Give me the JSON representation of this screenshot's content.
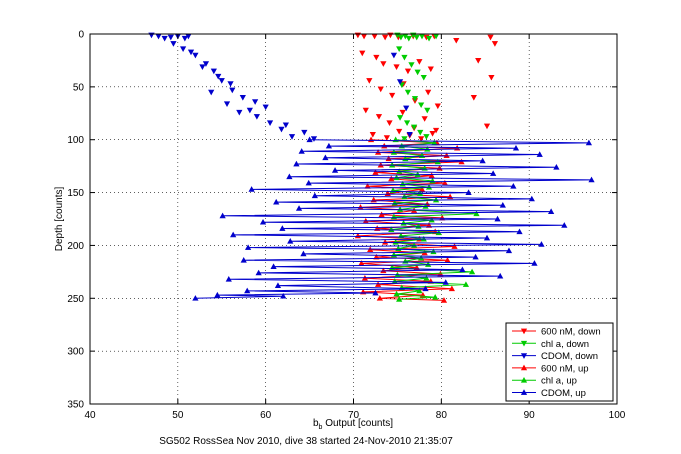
{
  "figure": {
    "caption": "SG502 RossSea Nov 2010, dive 38 started 24-Nov-2010 21:35:07"
  },
  "chart_data": {
    "type": "scatter",
    "xlabel_main": "b",
    "xlabel_sub": "b",
    "xlabel_rest": " Output [counts]",
    "ylabel": "Depth [counts]",
    "xlim": [
      40,
      100
    ],
    "ylim": [
      0,
      350
    ],
    "y_reversed": true,
    "grid": true,
    "grid_style": "dotted",
    "legend_placement": "bottom-right",
    "x_ticks": [
      "40",
      "50",
      "60",
      "70",
      "80",
      "90",
      "100"
    ],
    "y_ticks": [
      "0",
      "50",
      "100",
      "150",
      "200",
      "250",
      "300",
      "350"
    ],
    "series": [
      {
        "name": "600 nM, down",
        "color": "#ff0000",
        "marker": "triangle-down",
        "connected": false,
        "points": [
          [
            70.5,
            1
          ],
          [
            71.2,
            2
          ],
          [
            72.4,
            2
          ],
          [
            73.6,
            3
          ],
          [
            74.2,
            1
          ],
          [
            75.1,
            3
          ],
          [
            76.8,
            2
          ],
          [
            78.3,
            3
          ],
          [
            79.2,
            2
          ],
          [
            81.7,
            6
          ],
          [
            85.6,
            3
          ],
          [
            86.1,
            9
          ],
          [
            84.2,
            25
          ],
          [
            85.7,
            41
          ],
          [
            83.7,
            60
          ],
          [
            85.2,
            87
          ],
          [
            71.0,
            18
          ],
          [
            72.6,
            22
          ],
          [
            73.4,
            28
          ],
          [
            74.9,
            31
          ],
          [
            76.2,
            35
          ],
          [
            77.5,
            26
          ],
          [
            78.8,
            33
          ],
          [
            71.8,
            44
          ],
          [
            73.1,
            52
          ],
          [
            74.4,
            58
          ],
          [
            75.7,
            47
          ],
          [
            77.0,
            63
          ],
          [
            78.5,
            55
          ],
          [
            79.6,
            68
          ],
          [
            71.4,
            72
          ],
          [
            72.9,
            78
          ],
          [
            74.1,
            84
          ],
          [
            75.6,
            74
          ],
          [
            76.9,
            89
          ],
          [
            78.1,
            80
          ],
          [
            79.4,
            91
          ],
          [
            72.2,
            95
          ],
          [
            73.8,
            98
          ],
          [
            75.2,
            92
          ],
          [
            76.4,
            96
          ],
          [
            77.7,
            99
          ],
          [
            79.0,
            94
          ]
        ]
      },
      {
        "name": "chl a, down",
        "color": "#00cc00",
        "marker": "triangle-down",
        "connected": false,
        "points": [
          [
            75.0,
            1
          ],
          [
            75.4,
            3
          ],
          [
            75.9,
            2
          ],
          [
            76.3,
            4
          ],
          [
            76.8,
            1
          ],
          [
            77.2,
            3
          ],
          [
            77.8,
            2
          ],
          [
            78.6,
            4
          ],
          [
            79.4,
            2
          ],
          [
            75.2,
            14
          ],
          [
            75.8,
            22
          ],
          [
            76.6,
            29
          ],
          [
            77.3,
            36
          ],
          [
            78.0,
            41
          ],
          [
            75.5,
            48
          ],
          [
            76.2,
            55
          ],
          [
            77.0,
            61
          ],
          [
            77.7,
            67
          ],
          [
            78.4,
            72
          ],
          [
            75.3,
            79
          ],
          [
            76.1,
            84
          ],
          [
            76.9,
            88
          ],
          [
            77.6,
            93
          ],
          [
            78.3,
            97
          ],
          [
            75.8,
            99
          ]
        ]
      },
      {
        "name": "CDOM, down",
        "color": "#0000cc",
        "marker": "triangle-down",
        "connected": false,
        "points": [
          [
            47.0,
            1
          ],
          [
            47.8,
            2
          ],
          [
            48.5,
            4
          ],
          [
            49.2,
            3
          ],
          [
            50.0,
            2
          ],
          [
            50.8,
            4
          ],
          [
            51.2,
            2
          ],
          [
            49.5,
            9
          ],
          [
            50.6,
            14
          ],
          [
            52.0,
            20
          ],
          [
            53.2,
            28
          ],
          [
            54.1,
            35
          ],
          [
            55.0,
            44
          ],
          [
            56.2,
            53
          ],
          [
            57.4,
            60
          ],
          [
            58.2,
            72
          ],
          [
            59.0,
            78
          ],
          [
            60.5,
            84
          ],
          [
            61.8,
            90
          ],
          [
            63.0,
            97
          ],
          [
            53.8,
            55
          ],
          [
            55.6,
            66
          ],
          [
            57.0,
            74
          ],
          [
            51.5,
            17
          ],
          [
            52.8,
            31
          ],
          [
            54.6,
            40
          ],
          [
            56.0,
            47
          ],
          [
            58.8,
            64
          ],
          [
            60.0,
            69
          ],
          [
            62.3,
            86
          ],
          [
            64.4,
            93
          ],
          [
            65.5,
            99
          ],
          [
            74.6,
            20
          ],
          [
            75.3,
            45
          ],
          [
            76.0,
            70
          ],
          [
            76.4,
            95
          ]
        ]
      },
      {
        "name": "600 nM, up",
        "color": "#ff0000",
        "marker": "triangle-up",
        "connected": true,
        "points": [
          [
            72.0,
            100
          ],
          [
            79.5,
            103
          ],
          [
            73.5,
            106
          ],
          [
            81.8,
            108
          ],
          [
            72.8,
            112
          ],
          [
            80.6,
            115
          ],
          [
            74.0,
            118
          ],
          [
            82.3,
            121
          ],
          [
            73.1,
            124
          ],
          [
            79.8,
            127
          ],
          [
            72.5,
            131
          ],
          [
            78.9,
            134
          ],
          [
            74.3,
            137
          ],
          [
            80.4,
            141
          ],
          [
            71.6,
            144
          ],
          [
            77.8,
            147
          ],
          [
            73.9,
            151
          ],
          [
            81.0,
            154
          ],
          [
            72.3,
            157
          ],
          [
            78.4,
            161
          ],
          [
            70.8,
            164
          ],
          [
            76.9,
            167
          ],
          [
            73.2,
            171
          ],
          [
            80.1,
            174
          ],
          [
            71.4,
            177
          ],
          [
            78.6,
            181
          ],
          [
            72.7,
            184
          ],
          [
            79.3,
            187
          ],
          [
            70.5,
            191
          ],
          [
            77.5,
            194
          ],
          [
            73.6,
            197
          ],
          [
            81.5,
            201
          ],
          [
            71.9,
            204
          ],
          [
            78.1,
            207
          ],
          [
            72.6,
            211
          ],
          [
            80.7,
            214
          ],
          [
            70.9,
            217
          ],
          [
            77.2,
            221
          ],
          [
            73.4,
            224
          ],
          [
            79.9,
            227
          ],
          [
            71.3,
            231
          ],
          [
            78.8,
            234
          ],
          [
            72.8,
            237
          ],
          [
            81.2,
            241
          ],
          [
            71.1,
            244
          ],
          [
            77.9,
            247
          ],
          [
            73.0,
            250
          ],
          [
            80.3,
            252
          ]
        ]
      },
      {
        "name": "chl a, up",
        "color": "#00cc00",
        "marker": "triangle-up",
        "connected": true,
        "points": [
          [
            74.8,
            100
          ],
          [
            79.2,
            103
          ],
          [
            75.5,
            106
          ],
          [
            78.4,
            109
          ],
          [
            74.6,
            112
          ],
          [
            77.8,
            115
          ],
          [
            75.9,
            118
          ],
          [
            79.6,
            121
          ],
          [
            74.4,
            124
          ],
          [
            78.1,
            127
          ],
          [
            75.2,
            130
          ],
          [
            77.3,
            133
          ],
          [
            74.9,
            136
          ],
          [
            79.0,
            139
          ],
          [
            75.6,
            142
          ],
          [
            78.6,
            145
          ],
          [
            74.5,
            148
          ],
          [
            77.6,
            151
          ],
          [
            75.8,
            154
          ],
          [
            79.4,
            157
          ],
          [
            74.7,
            160
          ],
          [
            78.2,
            163
          ],
          [
            75.3,
            166
          ],
          [
            84.0,
            170
          ],
          [
            74.6,
            173
          ],
          [
            78.9,
            176
          ],
          [
            75.7,
            179
          ],
          [
            77.4,
            182
          ],
          [
            74.3,
            185
          ],
          [
            79.7,
            188
          ],
          [
            75.4,
            191
          ],
          [
            78.0,
            194
          ],
          [
            74.8,
            197
          ],
          [
            76.9,
            200
          ],
          [
            75.1,
            203
          ],
          [
            79.1,
            206
          ],
          [
            74.6,
            209
          ],
          [
            77.7,
            212
          ],
          [
            75.9,
            215
          ],
          [
            78.5,
            218
          ],
          [
            74.4,
            221
          ],
          [
            83.5,
            225
          ],
          [
            75.0,
            228
          ],
          [
            78.3,
            231
          ],
          [
            74.7,
            234
          ],
          [
            82.8,
            237
          ],
          [
            75.5,
            240
          ],
          [
            77.5,
            243
          ],
          [
            74.9,
            246
          ],
          [
            79.3,
            249
          ],
          [
            75.2,
            251
          ]
        ]
      },
      {
        "name": "CDOM, up",
        "color": "#0000cc",
        "marker": "triangle-up",
        "connected": true,
        "points": [
          [
            65.0,
            100
          ],
          [
            96.8,
            103
          ],
          [
            67.2,
            106
          ],
          [
            88.5,
            108
          ],
          [
            64.1,
            111
          ],
          [
            91.2,
            114
          ],
          [
            66.8,
            117
          ],
          [
            84.7,
            120
          ],
          [
            63.5,
            123
          ],
          [
            93.1,
            126
          ],
          [
            67.9,
            129
          ],
          [
            85.9,
            132
          ],
          [
            62.7,
            135
          ],
          [
            97.1,
            138
          ],
          [
            64.9,
            141
          ],
          [
            88.2,
            144
          ],
          [
            58.4,
            147
          ],
          [
            83.1,
            150
          ],
          [
            65.6,
            153
          ],
          [
            90.3,
            156
          ],
          [
            61.2,
            159
          ],
          [
            87.0,
            162
          ],
          [
            63.8,
            165
          ],
          [
            92.5,
            168
          ],
          [
            55.1,
            172
          ],
          [
            86.4,
            175
          ],
          [
            59.7,
            178
          ],
          [
            94.0,
            181
          ],
          [
            61.9,
            184
          ],
          [
            88.9,
            187
          ],
          [
            56.3,
            190
          ],
          [
            85.2,
            193
          ],
          [
            62.8,
            196
          ],
          [
            91.4,
            199
          ],
          [
            58.0,
            202
          ],
          [
            87.7,
            205
          ],
          [
            64.3,
            208
          ],
          [
            83.9,
            211
          ],
          [
            57.5,
            214
          ],
          [
            90.6,
            217
          ],
          [
            60.9,
            220
          ],
          [
            82.4,
            223
          ],
          [
            59.2,
            226
          ],
          [
            86.7,
            229
          ],
          [
            55.8,
            232
          ],
          [
            80.5,
            235
          ],
          [
            61.4,
            238
          ],
          [
            78.2,
            241
          ],
          [
            57.9,
            243
          ],
          [
            72.5,
            245
          ],
          [
            54.5,
            247
          ],
          [
            62.0,
            248
          ],
          [
            52.0,
            250
          ]
        ]
      }
    ]
  }
}
